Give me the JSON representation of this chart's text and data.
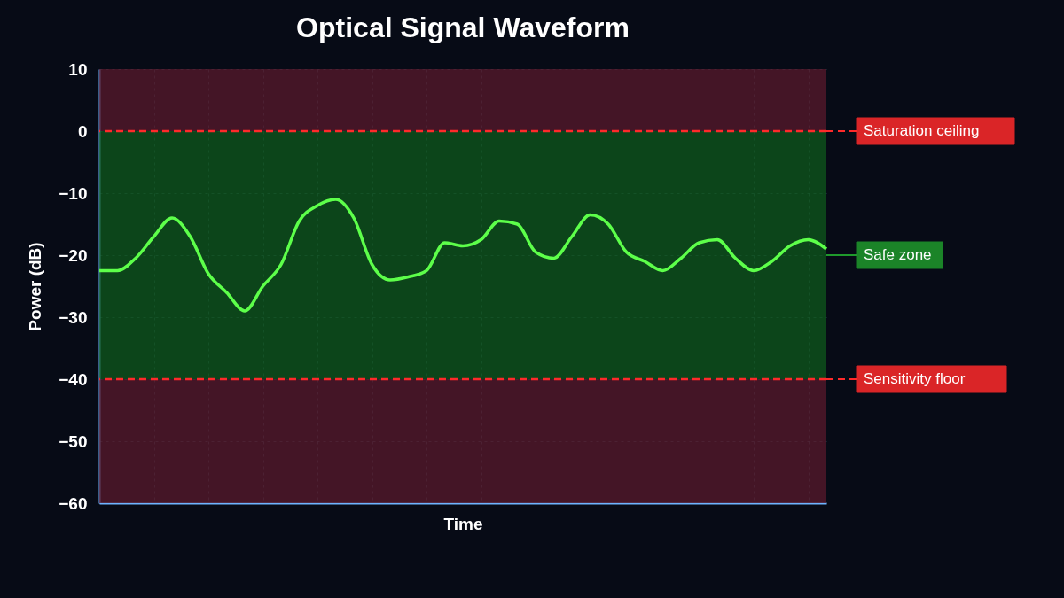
{
  "chart_data": {
    "type": "line",
    "title": "Optical Signal Waveform",
    "xlabel": "Time",
    "ylabel": "Power (dB)",
    "categories": [
      null,
      null,
      null,
      null,
      null,
      null,
      null,
      null,
      null,
      null,
      null,
      null,
      null,
      null,
      null,
      null,
      null,
      null,
      null,
      null,
      null,
      null,
      null,
      null,
      null,
      null,
      null,
      null,
      null,
      null,
      null,
      null,
      null,
      null,
      null,
      null,
      null,
      null,
      null,
      null,
      null
    ],
    "series": [
      {
        "color": "#5dff4a",
        "values": [
          -22.5,
          -22.5,
          -20.5,
          -17,
          -14,
          -17,
          -23,
          -26,
          -29,
          -25,
          -21.5,
          -14.5,
          -12,
          -11,
          -14,
          -21.5,
          -24,
          -23.5,
          -22.5,
          -18,
          -18.5,
          -17.5,
          -14.5,
          -15,
          -19.5,
          -20.5,
          -17,
          -13.5,
          -15,
          -19.5,
          -21,
          -22.5,
          -20.5,
          -18,
          -17.5,
          -20.5,
          -22.5,
          -21,
          -18.5,
          -17.5,
          -19
        ]
      }
    ],
    "ylim": [
      -60,
      10
    ],
    "yticks": [
      -60,
      -50,
      -40,
      -30,
      -20,
      -10,
      0,
      10
    ],
    "grid": true,
    "tick_labels": "y",
    "line_style": "solid",
    "ref_lines": [
      {
        "axis": "y",
        "value": 0,
        "label": "Saturation ceiling",
        "color": "#ff2a2a",
        "line_style": "dashed"
      },
      {
        "axis": "y",
        "value": -40,
        "label": "Sensitivity floor",
        "color": "#ff2a2a",
        "line_style": "dashed"
      }
    ],
    "bands": [
      {
        "axis": "y",
        "from": 0,
        "to": 10,
        "color": "#5a1a2c"
      },
      {
        "axis": "y",
        "from": -40,
        "to": 0,
        "label": "Safe zone",
        "color": "#0f5a1c"
      },
      {
        "axis": "y",
        "from": -60,
        "to": -40,
        "color": "#5a1a2c"
      }
    ]
  }
}
